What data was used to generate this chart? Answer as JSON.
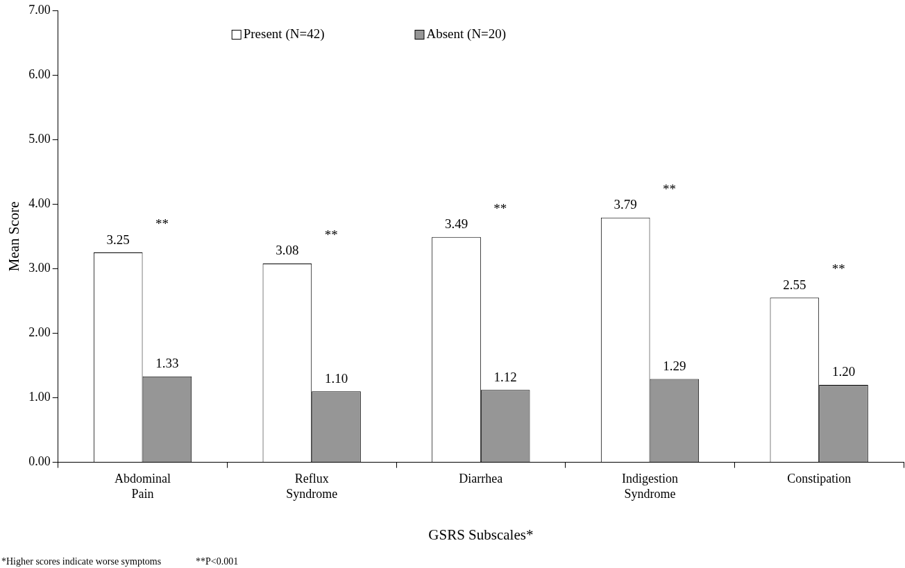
{
  "chart_data": {
    "type": "bar",
    "xlabel": "GSRS Subscales*",
    "ylabel": "Mean Score",
    "categories": [
      "Abdominal Pain",
      "Reflux Syndrome",
      "Diarrhea",
      "Indigestion Syndrome",
      "Constipation"
    ],
    "series": [
      {
        "name": "Present (N=42)",
        "color": "#ffffff",
        "values": [
          3.25,
          3.08,
          3.49,
          3.79,
          2.55
        ],
        "value_labels": [
          "3.25",
          "3.08",
          "3.49",
          "3.79",
          "2.55"
        ]
      },
      {
        "name": "Absent (N=20)",
        "color": "#969696",
        "values": [
          1.33,
          1.1,
          1.12,
          1.29,
          1.2
        ],
        "value_labels": [
          "1.33",
          "1.10",
          "1.12",
          "1.29",
          "1.20"
        ]
      }
    ],
    "ylim": [
      0,
      7
    ],
    "yticks": [
      {
        "value": 0,
        "label": "0.00"
      },
      {
        "value": 1,
        "label": "1.00"
      },
      {
        "value": 2,
        "label": "2.00"
      },
      {
        "value": 3,
        "label": "3.00"
      },
      {
        "value": 4,
        "label": "4.00"
      },
      {
        "value": 5,
        "label": "5.00"
      },
      {
        "value": 6,
        "label": "6.00"
      },
      {
        "value": 7,
        "label": "7.00"
      }
    ],
    "grid": false,
    "legend": "top",
    "annotations": [
      "**",
      "**",
      "**",
      "**",
      "**",
      "*Higher scores indicate worse symptoms",
      "**P<0.001"
    ]
  }
}
